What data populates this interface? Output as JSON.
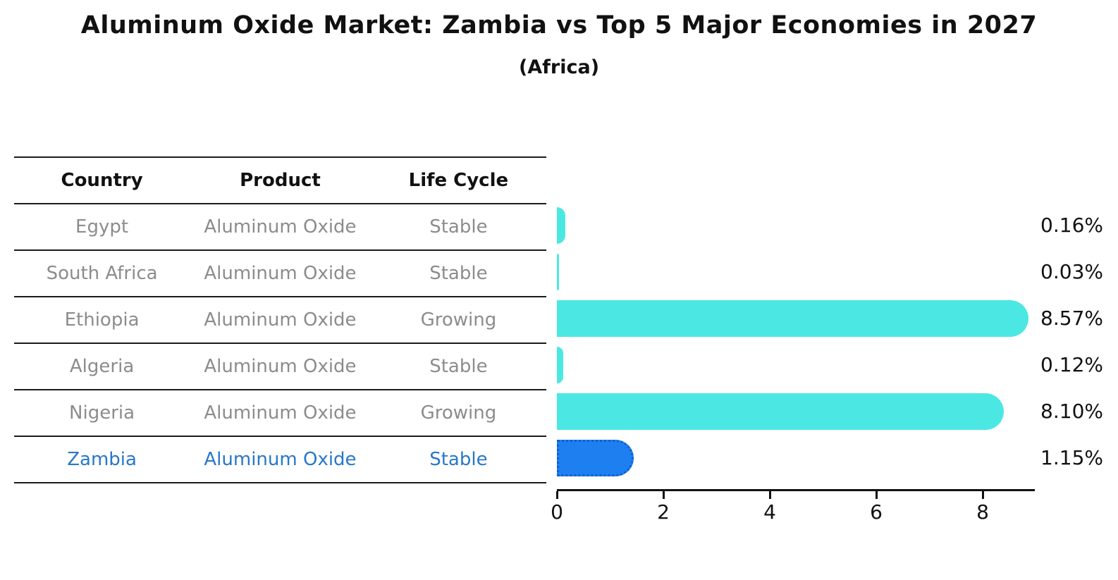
{
  "title": "Aluminum Oxide Market: Zambia vs Top 5 Major Economies in 2027",
  "subtitle": "(Africa)",
  "table": {
    "headers": [
      "Country",
      "Product",
      "Life Cycle"
    ],
    "rows": [
      {
        "country": "Egypt",
        "product": "Aluminum Oxide",
        "life_cycle": "Stable",
        "highlight": false
      },
      {
        "country": "South Africa",
        "product": "Aluminum Oxide",
        "life_cycle": "Stable",
        "highlight": false
      },
      {
        "country": "Ethiopia",
        "product": "Aluminum Oxide",
        "life_cycle": "Growing",
        "highlight": false
      },
      {
        "country": "Algeria",
        "product": "Aluminum Oxide",
        "life_cycle": "Stable",
        "highlight": false
      },
      {
        "country": "Nigeria",
        "product": "Aluminum Oxide",
        "life_cycle": "Growing",
        "highlight": false
      },
      {
        "country": "Zambia",
        "product": "Aluminum Oxide",
        "life_cycle": "Stable",
        "highlight": true
      }
    ]
  },
  "chart_data": {
    "type": "bar",
    "orientation": "horizontal",
    "title": "Aluminum Oxide Market: Zambia vs Top 5 Major Economies in 2027",
    "subtitle": "(Africa)",
    "categories": [
      "Egypt",
      "South Africa",
      "Ethiopia",
      "Algeria",
      "Nigeria",
      "Zambia"
    ],
    "values": [
      0.16,
      0.03,
      8.57,
      0.12,
      8.1,
      1.15
    ],
    "value_labels": [
      "0.16%",
      "0.03%",
      "8.57%",
      "0.12%",
      "8.10%",
      "1.15%"
    ],
    "highlight_index": 5,
    "x_ticks": [
      "0",
      "2",
      "4",
      "6",
      "8"
    ],
    "xlim": [
      0,
      8.95
    ],
    "grid": false,
    "legend": null,
    "colors": {
      "bar_default": "#4BE8E3",
      "bar_highlight": "#1E80F0",
      "bar_highlight_border": "#0E5ED8",
      "highlight_text": "#2878C8",
      "text_gray": "#8C8C8C",
      "axis": "#111111"
    }
  }
}
